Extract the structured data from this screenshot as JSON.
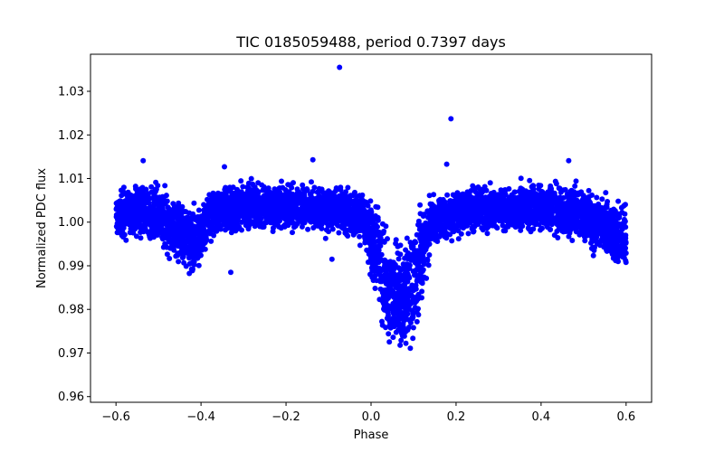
{
  "chart_data": {
    "type": "scatter",
    "title": "TIC 0185059488, period 0.7397 days",
    "xlabel": "Phase",
    "ylabel": "Normalized PDC flux",
    "xlim": [
      -0.66,
      0.66
    ],
    "ylim": [
      0.9587,
      1.0385
    ],
    "xticks": [
      -0.6,
      -0.4,
      -0.2,
      0.0,
      0.2,
      0.4,
      0.6
    ],
    "xtick_labels": [
      "−0.6",
      "−0.4",
      "−0.2",
      "0.0",
      "0.2",
      "0.4",
      "0.6"
    ],
    "yticks": [
      0.96,
      0.97,
      0.98,
      0.99,
      1.0,
      1.01,
      1.02,
      1.03
    ],
    "ytick_labels": [
      "0.96",
      "0.97",
      "0.98",
      "0.99",
      "1.00",
      "1.01",
      "1.02",
      "1.03"
    ],
    "grid": false,
    "marker_color": "#0000ff",
    "light_curve_envelope": {
      "phase": [
        -0.6,
        -0.55,
        -0.5,
        -0.46,
        -0.44,
        -0.42,
        -0.4,
        -0.38,
        -0.35,
        -0.3,
        -0.2,
        -0.1,
        -0.05,
        -0.02,
        -0.01,
        0.0,
        0.02,
        0.03,
        0.05,
        0.06,
        0.08,
        0.1,
        0.12,
        0.14,
        0.2,
        0.3,
        0.4,
        0.5,
        0.55,
        0.6
      ],
      "upper": [
        1.009,
        1.011,
        1.0105,
        1.009,
        1.008,
        1.006,
        1.007,
        1.009,
        1.01,
        1.011,
        1.011,
        1.01,
        1.01,
        1.01,
        1.009,
        1.008,
        1.006,
        1.003,
        0.999,
        1.0,
        1.002,
        1.005,
        1.007,
        1.009,
        1.01,
        1.011,
        1.011,
        1.01,
        1.008,
        1.006
      ],
      "lower": [
        0.994,
        0.995,
        0.992,
        0.988,
        0.986,
        0.984,
        0.988,
        0.994,
        0.996,
        0.996,
        0.996,
        0.996,
        0.995,
        0.993,
        0.99,
        0.983,
        0.975,
        0.97,
        0.968,
        0.966,
        0.963,
        0.965,
        0.98,
        0.992,
        0.995,
        0.996,
        0.996,
        0.993,
        0.99,
        0.985
      ]
    },
    "outliers": [
      {
        "x": -0.074,
        "y": 1.0355
      },
      {
        "x": 0.188,
        "y": 1.0237
      },
      {
        "x": -0.536,
        "y": 1.0141
      },
      {
        "x": -0.345,
        "y": 1.0127
      },
      {
        "x": -0.137,
        "y": 1.0143
      },
      {
        "x": 0.178,
        "y": 1.0133
      },
      {
        "x": 0.465,
        "y": 1.0141
      },
      {
        "x": -0.33,
        "y": 0.9885
      },
      {
        "x": -0.092,
        "y": 0.9915
      },
      {
        "x": 0.118,
        "y": 0.9955
      }
    ]
  }
}
